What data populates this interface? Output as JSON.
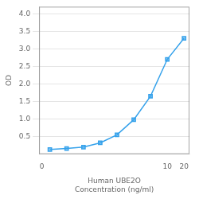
{
  "chart_data": {
    "type": "line",
    "xlabel": "Human UBE2O\nConcentration (ng/ml)",
    "ylabel": "OD",
    "x": [
      0.078,
      0.156,
      0.313,
      0.625,
      1.25,
      2.5,
      5.0,
      10.0,
      20.0
    ],
    "values": [
      0.13,
      0.16,
      0.2,
      0.32,
      0.55,
      0.98,
      1.65,
      2.7,
      3.3
    ],
    "marker": "square",
    "log": "x",
    "xlim": [
      0.05,
      25
    ],
    "xticks": [
      {
        "value": 0.056,
        "label": "0"
      },
      10,
      20
    ],
    "ylim": [
      0,
      4.2
    ],
    "yticks": [
      0.5,
      {
        "value": 1.0,
        "label": "1.0"
      },
      1.5,
      {
        "value": 2.0,
        "label": "2.0"
      },
      2.5,
      {
        "value": 3.0,
        "label": "3.0"
      },
      3.5,
      {
        "value": 4.0,
        "label": "4.0"
      }
    ],
    "grid": "y"
  }
}
